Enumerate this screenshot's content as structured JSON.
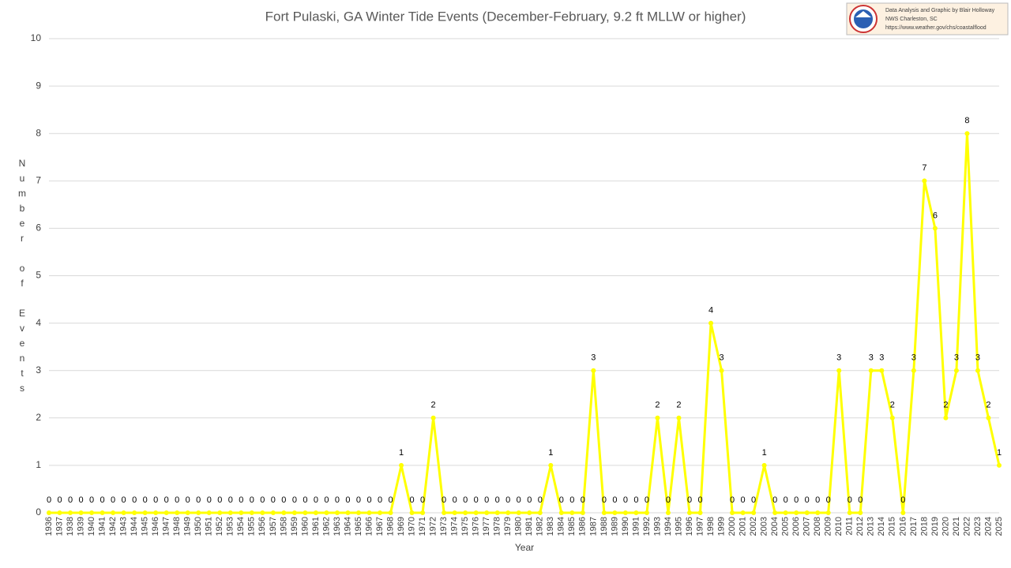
{
  "chart_data": {
    "type": "line",
    "title": "Fort Pulaski, GA Winter Tide Events (December-February, 9.2 ft MLLW or higher)",
    "x_label": "Year",
    "y_label": "Number of Events",
    "credits": [
      "Data Analysis and Graphic by Blair Holloway",
      "NWS Charleston, SC",
      "https://www.weather.gov/chs/coastalflood"
    ],
    "categories": [
      "1936",
      "1937",
      "1938",
      "1939",
      "1940",
      "1941",
      "1942",
      "1943",
      "1944",
      "1945",
      "1946",
      "1947",
      "1948",
      "1949",
      "1950",
      "1951",
      "1952",
      "1953",
      "1954",
      "1955",
      "1956",
      "1957",
      "1958",
      "1959",
      "1960",
      "1961",
      "1962",
      "1963",
      "1964",
      "1965",
      "1966",
      "1967",
      "1968",
      "1969",
      "1970",
      "1971",
      "1972",
      "1973",
      "1974",
      "1975",
      "1976",
      "1977",
      "1978",
      "1979",
      "1980",
      "1981",
      "1982",
      "1983",
      "1984",
      "1985",
      "1986",
      "1987",
      "1988",
      "1989",
      "1990",
      "1991",
      "1992",
      "1993",
      "1994",
      "1995",
      "1996",
      "1997",
      "1998",
      "1999",
      "2000",
      "2001",
      "2002",
      "2003",
      "2004",
      "2005",
      "2006",
      "2007",
      "2008",
      "2009",
      "2010",
      "2011",
      "2012",
      "2013",
      "2014",
      "2015",
      "2016",
      "2017",
      "2018",
      "2019",
      "2020",
      "2021",
      "2022",
      "2023",
      "2024",
      "2025"
    ],
    "values": [
      0,
      0,
      0,
      0,
      0,
      0,
      0,
      0,
      0,
      0,
      0,
      0,
      0,
      0,
      0,
      0,
      0,
      0,
      0,
      0,
      0,
      0,
      0,
      0,
      0,
      0,
      0,
      0,
      0,
      0,
      0,
      0,
      0,
      1,
      0,
      0,
      2,
      0,
      0,
      0,
      0,
      0,
      0,
      0,
      0,
      0,
      0,
      1,
      0,
      0,
      0,
      3,
      0,
      0,
      0,
      0,
      0,
      2,
      0,
      2,
      0,
      0,
      4,
      3,
      0,
      0,
      0,
      1,
      0,
      0,
      0,
      0,
      0,
      0,
      3,
      0,
      0,
      3,
      3,
      2,
      0,
      3,
      7,
      6,
      2,
      3,
      8,
      3,
      2,
      1
    ],
    "color": "#ffff00",
    "ylim": [
      0,
      10
    ],
    "yticks": [
      0,
      1,
      2,
      3,
      4,
      5,
      6,
      7,
      8,
      9,
      10
    ],
    "grid": true
  }
}
